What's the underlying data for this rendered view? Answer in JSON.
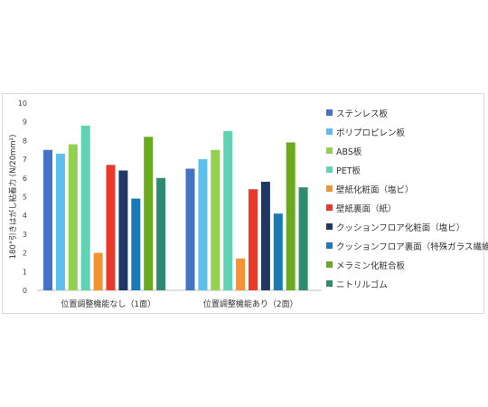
{
  "chart_data": {
    "type": "bar",
    "title": "",
    "xlabel": "",
    "ylabel": "180°引きはがし粘着力 (N/20mm²)",
    "ylim": [
      0,
      10
    ],
    "yticks": [
      "0",
      "1",
      "2",
      "3",
      "4",
      "5",
      "6",
      "7",
      "8",
      "9",
      "10"
    ],
    "grid": false,
    "legend_position": "right",
    "categories": [
      "位置調整機能なし（1面）",
      "位置調整機能あり（2面）"
    ],
    "series": [
      {
        "name": "ステンレス板",
        "color": "#4472c4",
        "values": [
          7.5,
          6.5
        ]
      },
      {
        "name": "ポリプロピレン板",
        "color": "#5bc0eb",
        "values": [
          7.3,
          7.0
        ]
      },
      {
        "name": "ABS板",
        "color": "#92d050",
        "values": [
          7.8,
          7.5
        ]
      },
      {
        "name": "PET板",
        "color": "#5fd3b3",
        "values": [
          8.8,
          8.5
        ]
      },
      {
        "name": "壁紙化粧面（塩ビ）",
        "color": "#f79232",
        "values": [
          2.0,
          1.7
        ]
      },
      {
        "name": "壁紙裏面（紙）",
        "color": "#e8392b",
        "values": [
          6.7,
          5.4
        ]
      },
      {
        "name": "クッションフロア化粧面（塩ビ）",
        "color": "#203864",
        "values": [
          6.4,
          5.8
        ]
      },
      {
        "name": "クッションフロア裏面（特殊ガラス繊維）",
        "color": "#1a7ab5",
        "values": [
          4.9,
          4.1
        ]
      },
      {
        "name": "メラミン化粧合板",
        "color": "#6aab1e",
        "values": [
          8.2,
          7.9
        ]
      },
      {
        "name": "ニトリルゴム",
        "color": "#2e8b6e",
        "values": [
          6.0,
          5.5
        ]
      }
    ]
  }
}
